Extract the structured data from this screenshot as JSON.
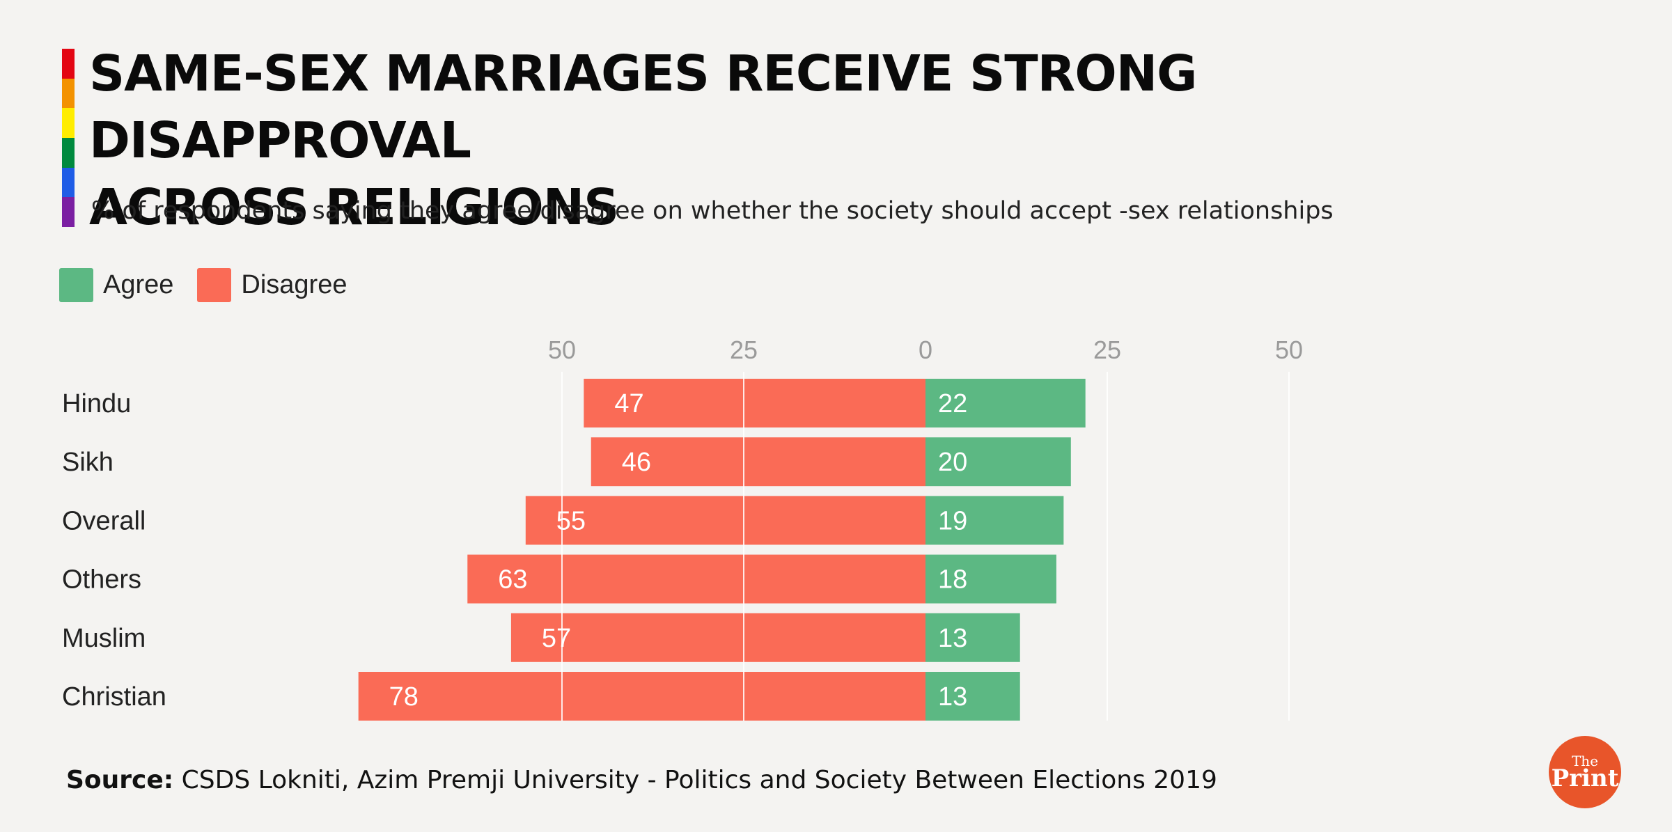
{
  "header": {
    "title": "SAME-SEX MARRIAGES RECEIVE STRONG DISAPPROVAL\nACROSS RELIGIONS",
    "subtitle": "% of respondents saying they agree/disagree on whether the society should accept -sex relationships",
    "rainbow_colors": [
      "#e30613",
      "#f39200",
      "#ffed00",
      "#008a3e",
      "#1f5ce6",
      "#7b1fa2"
    ]
  },
  "legend": [
    {
      "label": "Agree",
      "color": "#5cb883"
    },
    {
      "label": "Disagree",
      "color": "#fa6b56"
    }
  ],
  "chart_data": {
    "type": "bar",
    "orientation": "horizontal-diverging",
    "categories": [
      "Hindu",
      "Sikh",
      "Overall",
      "Others",
      "Muslim",
      "Christian"
    ],
    "series": [
      {
        "name": "Disagree",
        "color": "#fa6b56",
        "values": [
          47,
          46,
          55,
          63,
          57,
          78
        ]
      },
      {
        "name": "Agree",
        "color": "#5cb883",
        "values": [
          22,
          20,
          19,
          18,
          13,
          13
        ]
      }
    ],
    "x_ticks": [
      "50",
      "25",
      "0",
      "25",
      "50"
    ],
    "x_tick_values": [
      -50,
      -25,
      0,
      25,
      50
    ],
    "xlim": [
      -80,
      55
    ],
    "grid": true
  },
  "footer": {
    "source_label": "Source:",
    "source_text": " CSDS Lokniti, Azim Premji University - Politics and Society Between Elections 2019"
  },
  "logo": {
    "the": "The",
    "print": "Print"
  }
}
